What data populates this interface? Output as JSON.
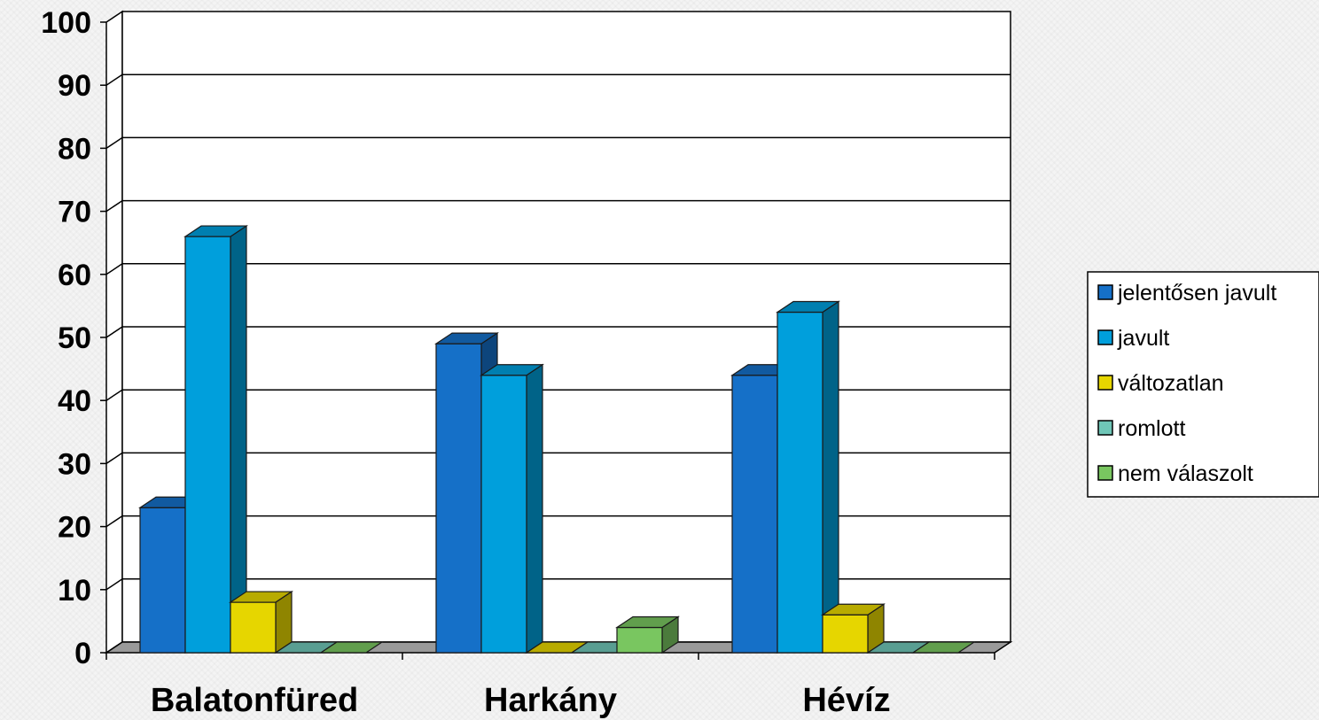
{
  "chart_data": {
    "type": "bar",
    "categories": [
      "Balatonfüred",
      "Harkány",
      "Hévíz"
    ],
    "series": [
      {
        "name": "jelentősen javult",
        "values": [
          23,
          49,
          44
        ],
        "color": "#1570c8"
      },
      {
        "name": "javult",
        "values": [
          66,
          44,
          54
        ],
        "color": "#009fdc"
      },
      {
        "name": "változatlan",
        "values": [
          8,
          0,
          6
        ],
        "color": "#e6d600"
      },
      {
        "name": "romlott",
        "values": [
          0,
          0,
          0
        ],
        "color": "#6fc6b7"
      },
      {
        "name": "nem válaszolt",
        "values": [
          0,
          4,
          0
        ],
        "color": "#79c660"
      }
    ],
    "yticks": [
      0,
      10,
      20,
      30,
      40,
      50,
      60,
      70,
      80,
      90,
      100
    ],
    "ylim": [
      0,
      100
    ],
    "grid": true,
    "legend_position": "right",
    "title": "",
    "xlabel": "",
    "ylabel": ""
  }
}
